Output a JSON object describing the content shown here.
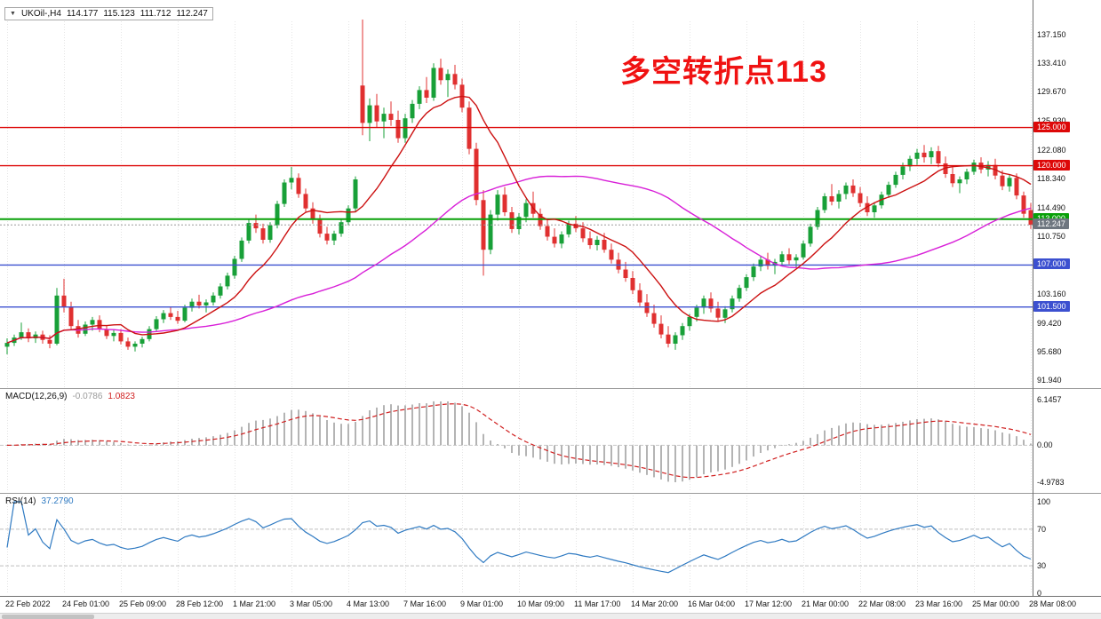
{
  "header": {
    "marker": "▼",
    "symbol": "UKOil-,H4",
    "open": "114.177",
    "high": "115.123",
    "low": "111.712",
    "close": "112.247"
  },
  "chart_data": [
    {
      "type": "candlestick",
      "title": "UKOil-,H4",
      "ylim": [
        91.0,
        138.9
      ],
      "y_ticks": [
        "137.150",
        "133.410",
        "129.670",
        "125.930",
        "122.080",
        "118.340",
        "114.490",
        "110.750",
        "106.900",
        "103.160",
        "99.420",
        "95.680",
        "91.940"
      ],
      "x_labels": [
        "22 Feb 2022",
        "24 Feb 01:00",
        "25 Feb 09:00",
        "28 Feb 12:00",
        "1 Mar 21:00",
        "3 Mar 05:00",
        "4 Mar 13:00",
        "7 Mar 16:00",
        "9 Mar 01:00",
        "10 Mar 09:00",
        "11 Mar 17:00",
        "14 Mar 20:00",
        "16 Mar 04:00",
        "17 Mar 12:00",
        "21 Mar 00:00",
        "22 Mar 08:00",
        "23 Mar 16:00",
        "25 Mar 00:00",
        "28 Mar 08:00"
      ],
      "x_label_every_n_bars": 8,
      "up_color": "#18a038",
      "down_color": "#e03030",
      "ma_fast": {
        "period": 10,
        "color": "#cc1111"
      },
      "ma_slow": {
        "period": 44,
        "color": "#d820d8"
      },
      "hlines": [
        {
          "label": "125.000",
          "value": 125.0,
          "color": "#dd0808",
          "width": 1.4
        },
        {
          "label": "120.000",
          "value": 120.0,
          "color": "#dd0808",
          "width": 1.4
        },
        {
          "label": "113.000",
          "value": 113.0,
          "color": "#08a008",
          "width": 2
        },
        {
          "label": "107.000",
          "value": 107.0,
          "color": "#3c50d0",
          "width": 1.4
        },
        {
          "label": "101.500",
          "value": 101.5,
          "color": "#3c50d0",
          "width": 1.4
        }
      ],
      "current_price": {
        "label": "112.247",
        "value": 112.247,
        "badge_color": "#6e7680",
        "line_color": "#9a9a9a"
      },
      "annotation": {
        "text": "多空转折点113",
        "color": "#f01212"
      },
      "candles": [
        [
          96.3,
          97.4,
          95.3,
          96.8
        ],
        [
          96.8,
          97.9,
          96.4,
          97.5
        ],
        [
          97.5,
          99.45,
          97.2,
          98.2
        ],
        [
          98.2,
          98.7,
          96.9,
          97.4
        ],
        [
          97.4,
          98.3,
          96.8,
          97.9
        ],
        [
          97.9,
          98.4,
          96.7,
          97.2
        ],
        [
          97.2,
          97.8,
          96.1,
          96.7
        ],
        [
          96.7,
          104.0,
          96.5,
          103.0
        ],
        [
          103.0,
          105.19,
          100.8,
          101.5
        ],
        [
          101.5,
          102.2,
          98.6,
          99.0
        ],
        [
          99.0,
          99.8,
          97.5,
          98.0
        ],
        [
          98.0,
          99.6,
          97.7,
          99.2
        ],
        [
          99.2,
          100.2,
          98.4,
          99.8
        ],
        [
          99.8,
          100.4,
          98.2,
          98.6
        ],
        [
          98.6,
          99.1,
          97.3,
          97.7
        ],
        [
          97.7,
          98.5,
          97.0,
          98.1
        ],
        [
          98.1,
          98.6,
          96.6,
          97.0
        ],
        [
          97.0,
          97.5,
          95.9,
          96.3
        ],
        [
          96.3,
          97.0,
          95.68,
          96.7
        ],
        [
          96.7,
          97.6,
          96.2,
          97.3
        ],
        [
          97.3,
          99.0,
          97.0,
          98.6
        ],
        [
          98.6,
          100.3,
          98.3,
          99.9
        ],
        [
          99.9,
          101.1,
          99.4,
          100.7
        ],
        [
          100.7,
          101.5,
          99.8,
          100.2
        ],
        [
          100.2,
          101.0,
          99.3,
          99.7
        ],
        [
          99.7,
          101.8,
          99.5,
          101.4
        ],
        [
          101.4,
          102.6,
          100.9,
          102.2
        ],
        [
          102.2,
          103.1,
          101.3,
          101.7
        ],
        [
          101.7,
          102.5,
          100.8,
          102.1
        ],
        [
          102.1,
          103.4,
          101.7,
          103.0
        ],
        [
          103.0,
          104.6,
          102.6,
          104.2
        ],
        [
          104.2,
          106.0,
          103.8,
          105.6
        ],
        [
          105.6,
          108.2,
          105.2,
          107.8
        ],
        [
          107.8,
          110.6,
          107.4,
          110.2
        ],
        [
          110.2,
          113.0,
          109.8,
          112.5
        ],
        [
          112.5,
          113.6,
          111.2,
          111.8
        ],
        [
          111.8,
          112.4,
          109.8,
          110.3
        ],
        [
          110.3,
          112.6,
          109.9,
          112.2
        ],
        [
          112.2,
          115.4,
          111.8,
          115.0
        ],
        [
          115.0,
          118.2,
          114.6,
          117.8
        ],
        [
          117.8,
          119.84,
          116.9,
          118.4
        ],
        [
          118.4,
          119.0,
          115.8,
          116.3
        ],
        [
          116.3,
          117.0,
          113.9,
          114.4
        ],
        [
          114.4,
          115.2,
          112.4,
          112.9
        ],
        [
          112.9,
          113.6,
          110.6,
          111.1
        ],
        [
          111.1,
          112.0,
          109.7,
          110.2
        ],
        [
          110.2,
          111.5,
          109.6,
          111.1
        ],
        [
          111.1,
          113.0,
          110.7,
          112.6
        ],
        [
          112.6,
          114.8,
          112.2,
          114.4
        ],
        [
          114.4,
          118.6,
          114.0,
          118.2
        ],
        [
          130.5,
          139.13,
          124.0,
          125.6
        ],
        [
          125.6,
          128.8,
          123.2,
          127.9
        ],
        [
          127.9,
          129.4,
          125.0,
          125.8
        ],
        [
          125.8,
          127.6,
          123.6,
          126.8
        ],
        [
          126.8,
          128.4,
          125.2,
          126.0
        ],
        [
          126.0,
          127.2,
          123.0,
          123.6
        ],
        [
          123.6,
          126.8,
          123.0,
          126.2
        ],
        [
          126.2,
          128.6,
          125.6,
          128.1
        ],
        [
          128.1,
          130.4,
          127.4,
          129.9
        ],
        [
          129.9,
          131.6,
          128.2,
          128.9
        ],
        [
          128.9,
          133.4,
          128.5,
          132.8
        ],
        [
          132.8,
          134.0,
          130.6,
          131.2
        ],
        [
          131.2,
          132.6,
          129.0,
          132.0
        ],
        [
          132.0,
          133.2,
          130.0,
          130.6
        ],
        [
          130.6,
          131.4,
          127.0,
          127.6
        ],
        [
          127.6,
          128.4,
          121.5,
          122.2
        ],
        [
          122.2,
          123.0,
          114.8,
          115.5
        ],
        [
          115.5,
          116.8,
          105.6,
          109.0
        ],
        [
          109.0,
          114.2,
          108.4,
          113.6
        ],
        [
          113.6,
          116.8,
          112.8,
          116.2
        ],
        [
          116.2,
          117.2,
          113.4,
          113.9
        ],
        [
          113.9,
          114.6,
          111.2,
          111.7
        ],
        [
          111.7,
          113.8,
          111.0,
          113.3
        ],
        [
          113.3,
          115.6,
          112.6,
          115.1
        ],
        [
          115.1,
          116.6,
          113.2,
          113.7
        ],
        [
          113.7,
          114.4,
          111.6,
          112.1
        ],
        [
          112.1,
          113.0,
          110.2,
          110.7
        ],
        [
          110.7,
          111.8,
          109.3,
          109.8
        ],
        [
          109.8,
          111.4,
          109.2,
          111.0
        ],
        [
          111.0,
          112.8,
          110.6,
          112.4
        ],
        [
          112.4,
          113.4,
          111.3,
          111.8
        ],
        [
          111.8,
          112.6,
          110.0,
          110.5
        ],
        [
          110.5,
          111.4,
          109.1,
          109.6
        ],
        [
          109.6,
          110.8,
          108.9,
          110.3
        ],
        [
          110.3,
          111.2,
          108.6,
          109.0
        ],
        [
          109.0,
          109.8,
          107.2,
          107.7
        ],
        [
          107.7,
          108.6,
          105.9,
          106.4
        ],
        [
          106.4,
          107.4,
          104.8,
          105.3
        ],
        [
          105.3,
          106.2,
          103.2,
          103.7
        ],
        [
          103.7,
          104.6,
          101.6,
          102.1
        ],
        [
          102.1,
          103.2,
          100.2,
          100.7
        ],
        [
          100.7,
          101.8,
          98.8,
          99.3
        ],
        [
          99.3,
          100.4,
          97.4,
          97.9
        ],
        [
          97.9,
          99.0,
          96.2,
          96.7
        ],
        [
          96.7,
          98.2,
          95.9,
          97.8
        ],
        [
          97.8,
          99.4,
          97.2,
          99.0
        ],
        [
          99.0,
          100.6,
          98.4,
          100.2
        ],
        [
          100.2,
          101.8,
          99.6,
          101.4
        ],
        [
          101.4,
          103.0,
          100.6,
          102.6
        ],
        [
          102.6,
          103.4,
          100.8,
          101.3
        ],
        [
          101.3,
          102.2,
          99.6,
          100.1
        ],
        [
          100.1,
          101.6,
          99.4,
          101.2
        ],
        [
          101.2,
          103.0,
          100.8,
          102.6
        ],
        [
          102.6,
          104.4,
          102.2,
          104.0
        ],
        [
          104.0,
          105.8,
          103.6,
          105.4
        ],
        [
          105.4,
          107.2,
          104.9,
          106.8
        ],
        [
          106.8,
          108.2,
          106.2,
          107.7
        ],
        [
          107.7,
          108.6,
          106.4,
          106.9
        ],
        [
          106.9,
          107.8,
          105.8,
          107.4
        ],
        [
          107.4,
          108.8,
          107.0,
          108.4
        ],
        [
          108.4,
          109.2,
          107.1,
          107.6
        ],
        [
          107.6,
          108.4,
          106.6,
          108.0
        ],
        [
          108.0,
          110.2,
          107.7,
          109.8
        ],
        [
          109.8,
          112.4,
          109.4,
          112.0
        ],
        [
          112.0,
          114.6,
          111.6,
          114.2
        ],
        [
          114.2,
          116.4,
          113.8,
          116.0
        ],
        [
          116.0,
          117.6,
          114.8,
          115.3
        ],
        [
          115.3,
          116.8,
          114.4,
          116.3
        ],
        [
          116.3,
          117.8,
          115.6,
          117.4
        ],
        [
          117.4,
          118.2,
          115.9,
          116.4
        ],
        [
          116.4,
          117.2,
          114.6,
          115.1
        ],
        [
          115.1,
          116.0,
          113.4,
          113.9
        ],
        [
          113.9,
          115.2,
          113.2,
          114.8
        ],
        [
          114.8,
          116.6,
          114.4,
          116.2
        ],
        [
          116.2,
          117.9,
          115.8,
          117.5
        ],
        [
          117.5,
          119.2,
          117.1,
          118.8
        ],
        [
          118.8,
          120.4,
          118.2,
          119.9
        ],
        [
          119.9,
          121.3,
          119.3,
          120.9
        ],
        [
          120.9,
          122.2,
          120.1,
          121.7
        ],
        [
          121.7,
          122.7,
          120.4,
          121.1
        ],
        [
          121.1,
          122.4,
          120.2,
          121.9
        ],
        [
          121.9,
          122.6,
          119.8,
          120.3
        ],
        [
          120.3,
          121.2,
          118.4,
          118.9
        ],
        [
          118.9,
          119.8,
          117.2,
          117.7
        ],
        [
          117.7,
          118.6,
          116.4,
          118.2
        ],
        [
          118.2,
          119.6,
          117.6,
          119.2
        ],
        [
          119.2,
          120.8,
          118.8,
          120.4
        ],
        [
          120.4,
          121.1,
          119.0,
          119.5
        ],
        [
          119.5,
          120.6,
          118.6,
          120.1
        ],
        [
          120.1,
          120.9,
          118.2,
          118.7
        ],
        [
          118.7,
          119.4,
          116.8,
          117.3
        ],
        [
          117.3,
          118.8,
          116.6,
          118.4
        ],
        [
          118.4,
          119.0,
          115.6,
          116.1
        ],
        [
          116.1,
          116.6,
          113.2,
          113.7
        ],
        [
          114.177,
          115.123,
          111.712,
          112.247
        ]
      ]
    },
    {
      "type": "bar",
      "name": "MACD",
      "label": "MACD(12,26,9)",
      "params": [
        12,
        26,
        9
      ],
      "main_value": "-0.0786",
      "signal_value": "1.0823",
      "y_ticks": [
        "6.1457",
        "0.00",
        "-4.9783"
      ],
      "ylim": [
        -4.9783,
        6.1457
      ],
      "histogram_color": "#b4b4b4",
      "signal_color": "#d02020"
    },
    {
      "type": "line",
      "name": "RSI",
      "label": "RSI(14)",
      "period": 14,
      "value": "37.2790",
      "y_ticks": [
        "100",
        "70",
        "30",
        "0"
      ],
      "levels": [
        70,
        30
      ],
      "ylim": [
        0,
        100
      ],
      "color": "#2f7ac2"
    }
  ]
}
